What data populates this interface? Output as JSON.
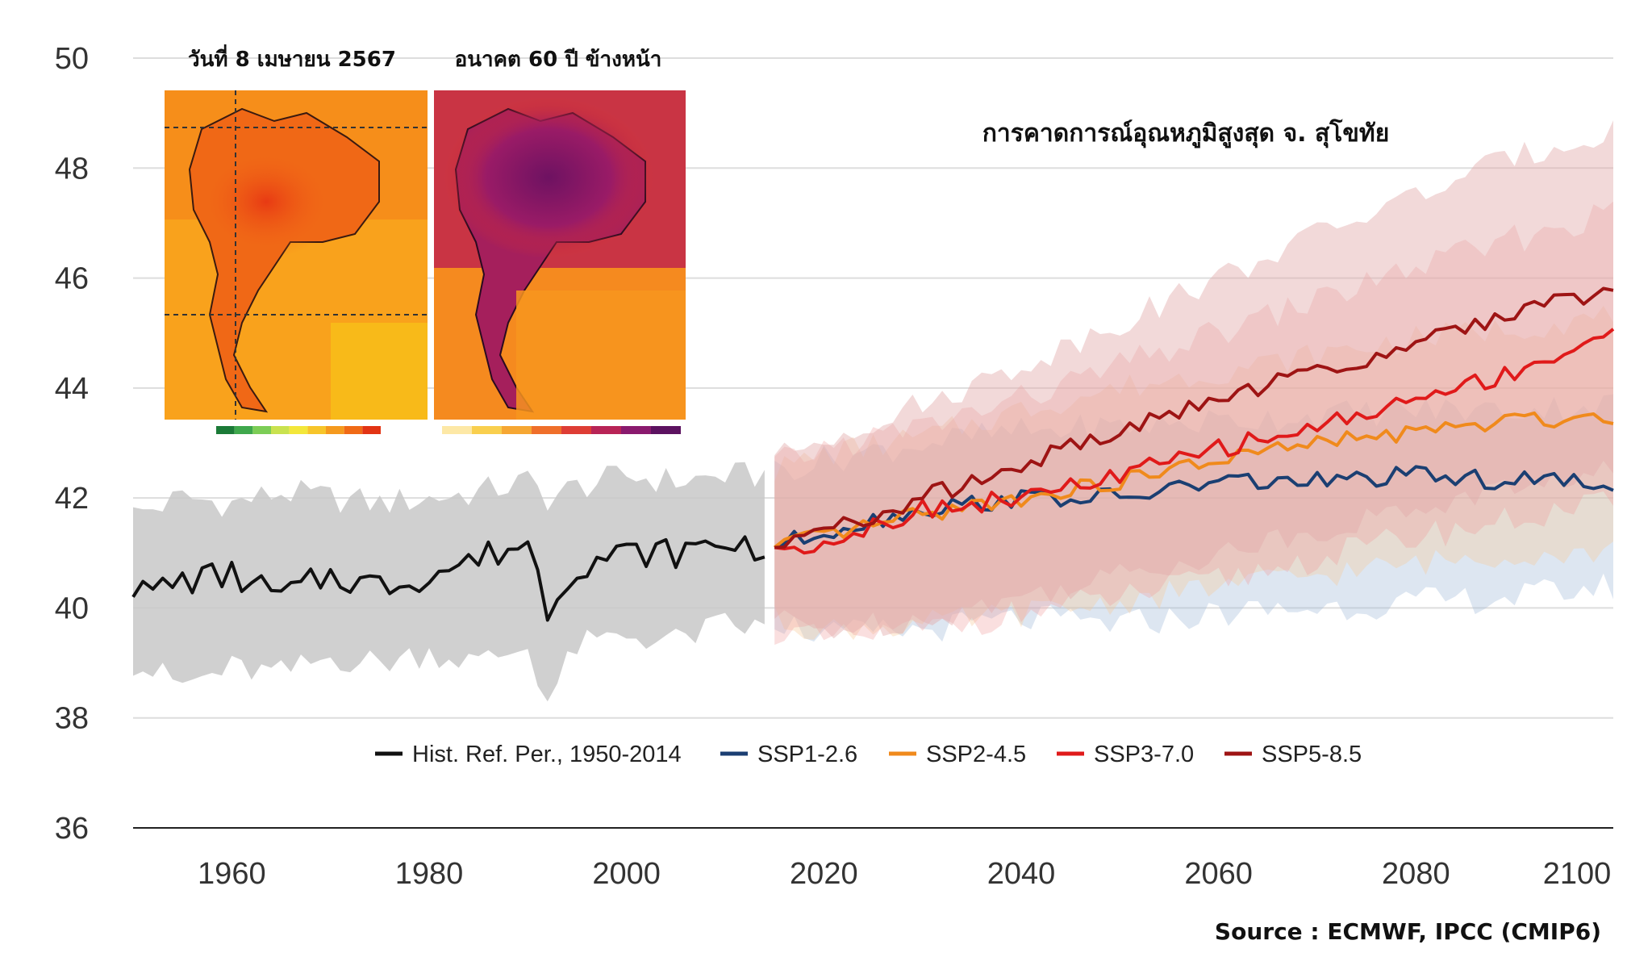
{
  "chart_data": {
    "type": "line",
    "title": "การคาดการณ์อุณหภูมิสูงสุด จ. สุโขทัย",
    "source": "Source : ECMWF, IPCC (CMIP6)",
    "xlabel": "",
    "ylabel": "",
    "xlim": [
      1950,
      2100
    ],
    "ylim": [
      36,
      50
    ],
    "x_ticks": [
      1960,
      1980,
      2000,
      2020,
      2040,
      2060,
      2080,
      2100
    ],
    "y_ticks": [
      36,
      38,
      40,
      42,
      44,
      46,
      48,
      50
    ],
    "grid": true,
    "legend_position": "bottom",
    "series": [
      {
        "name": "Hist. Ref. Per., 1950-2014",
        "color": "#111111",
        "band_color": "#c8c8c8",
        "x": [
          1950,
          1955,
          1960,
          1965,
          1970,
          1975,
          1980,
          1985,
          1990,
          1992,
          1995,
          2000,
          2005,
          2010,
          2014
        ],
        "values": [
          40.2,
          40.5,
          40.6,
          40.2,
          40.6,
          40.4,
          40.6,
          40.9,
          41.2,
          40.0,
          40.8,
          41.0,
          41.0,
          41.2,
          41.1
        ],
        "band_low": [
          39.0,
          38.6,
          38.9,
          38.8,
          39.1,
          39.0,
          39.2,
          39.0,
          39.3,
          38.3,
          39.3,
          39.5,
          39.4,
          39.7,
          39.6
        ],
        "band_high": [
          41.7,
          42.0,
          41.9,
          42.1,
          42.0,
          41.9,
          42.0,
          42.1,
          42.3,
          42.0,
          42.2,
          42.4,
          42.3,
          42.4,
          42.4
        ]
      },
      {
        "name": "SSP1-2.6",
        "color": "#1b3f72",
        "band_color": "#9db8d8",
        "x": [
          2015,
          2020,
          2030,
          2040,
          2050,
          2060,
          2070,
          2080,
          2090,
          2100
        ],
        "values": [
          41.1,
          41.4,
          41.8,
          42.0,
          42.0,
          42.3,
          42.3,
          42.4,
          42.3,
          42.3
        ],
        "band_low": [
          39.8,
          39.5,
          39.6,
          39.8,
          39.7,
          39.9,
          40.0,
          40.1,
          40.2,
          40.4
        ],
        "band_high": [
          42.5,
          42.7,
          43.0,
          43.2,
          43.3,
          43.4,
          43.5,
          43.6,
          43.6,
          43.7
        ]
      },
      {
        "name": "SSP2-4.5",
        "color": "#f08a1c",
        "band_color": "#f6c998",
        "x": [
          2015,
          2020,
          2030,
          2040,
          2050,
          2060,
          2070,
          2080,
          2090,
          2100
        ],
        "values": [
          41.1,
          41.3,
          41.7,
          42.0,
          42.3,
          42.7,
          43.0,
          43.2,
          43.4,
          43.5
        ],
        "band_low": [
          39.8,
          39.6,
          39.7,
          39.9,
          40.1,
          40.4,
          40.6,
          40.8,
          41.0,
          41.0
        ],
        "band_high": [
          42.5,
          42.8,
          43.1,
          43.6,
          44.0,
          44.3,
          44.6,
          44.9,
          45.1,
          45.3
        ]
      },
      {
        "name": "SSP3-7.0",
        "color": "#e01a1a",
        "band_color": "#f09a9a",
        "x": [
          2015,
          2020,
          2030,
          2040,
          2050,
          2060,
          2070,
          2080,
          2090,
          2100
        ],
        "values": [
          41.1,
          41.2,
          41.8,
          42.0,
          42.4,
          42.9,
          43.3,
          43.8,
          44.3,
          45.0
        ],
        "band_low": [
          39.6,
          39.4,
          39.6,
          39.9,
          40.2,
          40.5,
          40.9,
          41.3,
          41.6,
          41.9
        ],
        "band_high": [
          42.6,
          42.9,
          43.3,
          43.8,
          44.4,
          45.0,
          45.6,
          46.2,
          46.7,
          47.2
        ]
      },
      {
        "name": "SSP5-8.5",
        "color": "#9e1414",
        "band_color": "#e3aaaa",
        "x": [
          2015,
          2020,
          2030,
          2040,
          2050,
          2060,
          2070,
          2080,
          2090,
          2100
        ],
        "values": [
          41.1,
          41.4,
          42.0,
          42.6,
          43.2,
          43.8,
          44.3,
          44.8,
          45.4,
          45.8
        ],
        "band_low": [
          39.8,
          39.6,
          39.8,
          40.2,
          40.6,
          41.0,
          41.4,
          41.8,
          42.2,
          42.5
        ],
        "band_high": [
          42.7,
          43.1,
          43.7,
          44.4,
          45.2,
          46.0,
          46.8,
          47.5,
          48.2,
          48.7
        ]
      }
    ]
  },
  "maps": [
    {
      "caption": "วันที่ 8 เมษายน 2567",
      "base_color": "#f9a21c",
      "colorbar": [
        "#1b7a37",
        "#3fa84c",
        "#7ccd56",
        "#c9e24f",
        "#f3e73a",
        "#f7c52a",
        "#f59a1e",
        "#f06a16",
        "#e23414"
      ]
    },
    {
      "caption": "อนาคต 60 ปี ข้างหน้า",
      "base_color": "#f58a1f",
      "colorbar": [
        "#fde8a6",
        "#f9cf4e",
        "#f6a733",
        "#ef6f2a",
        "#de3d35",
        "#b82456",
        "#8a1a6e",
        "#5c1260"
      ]
    }
  ]
}
